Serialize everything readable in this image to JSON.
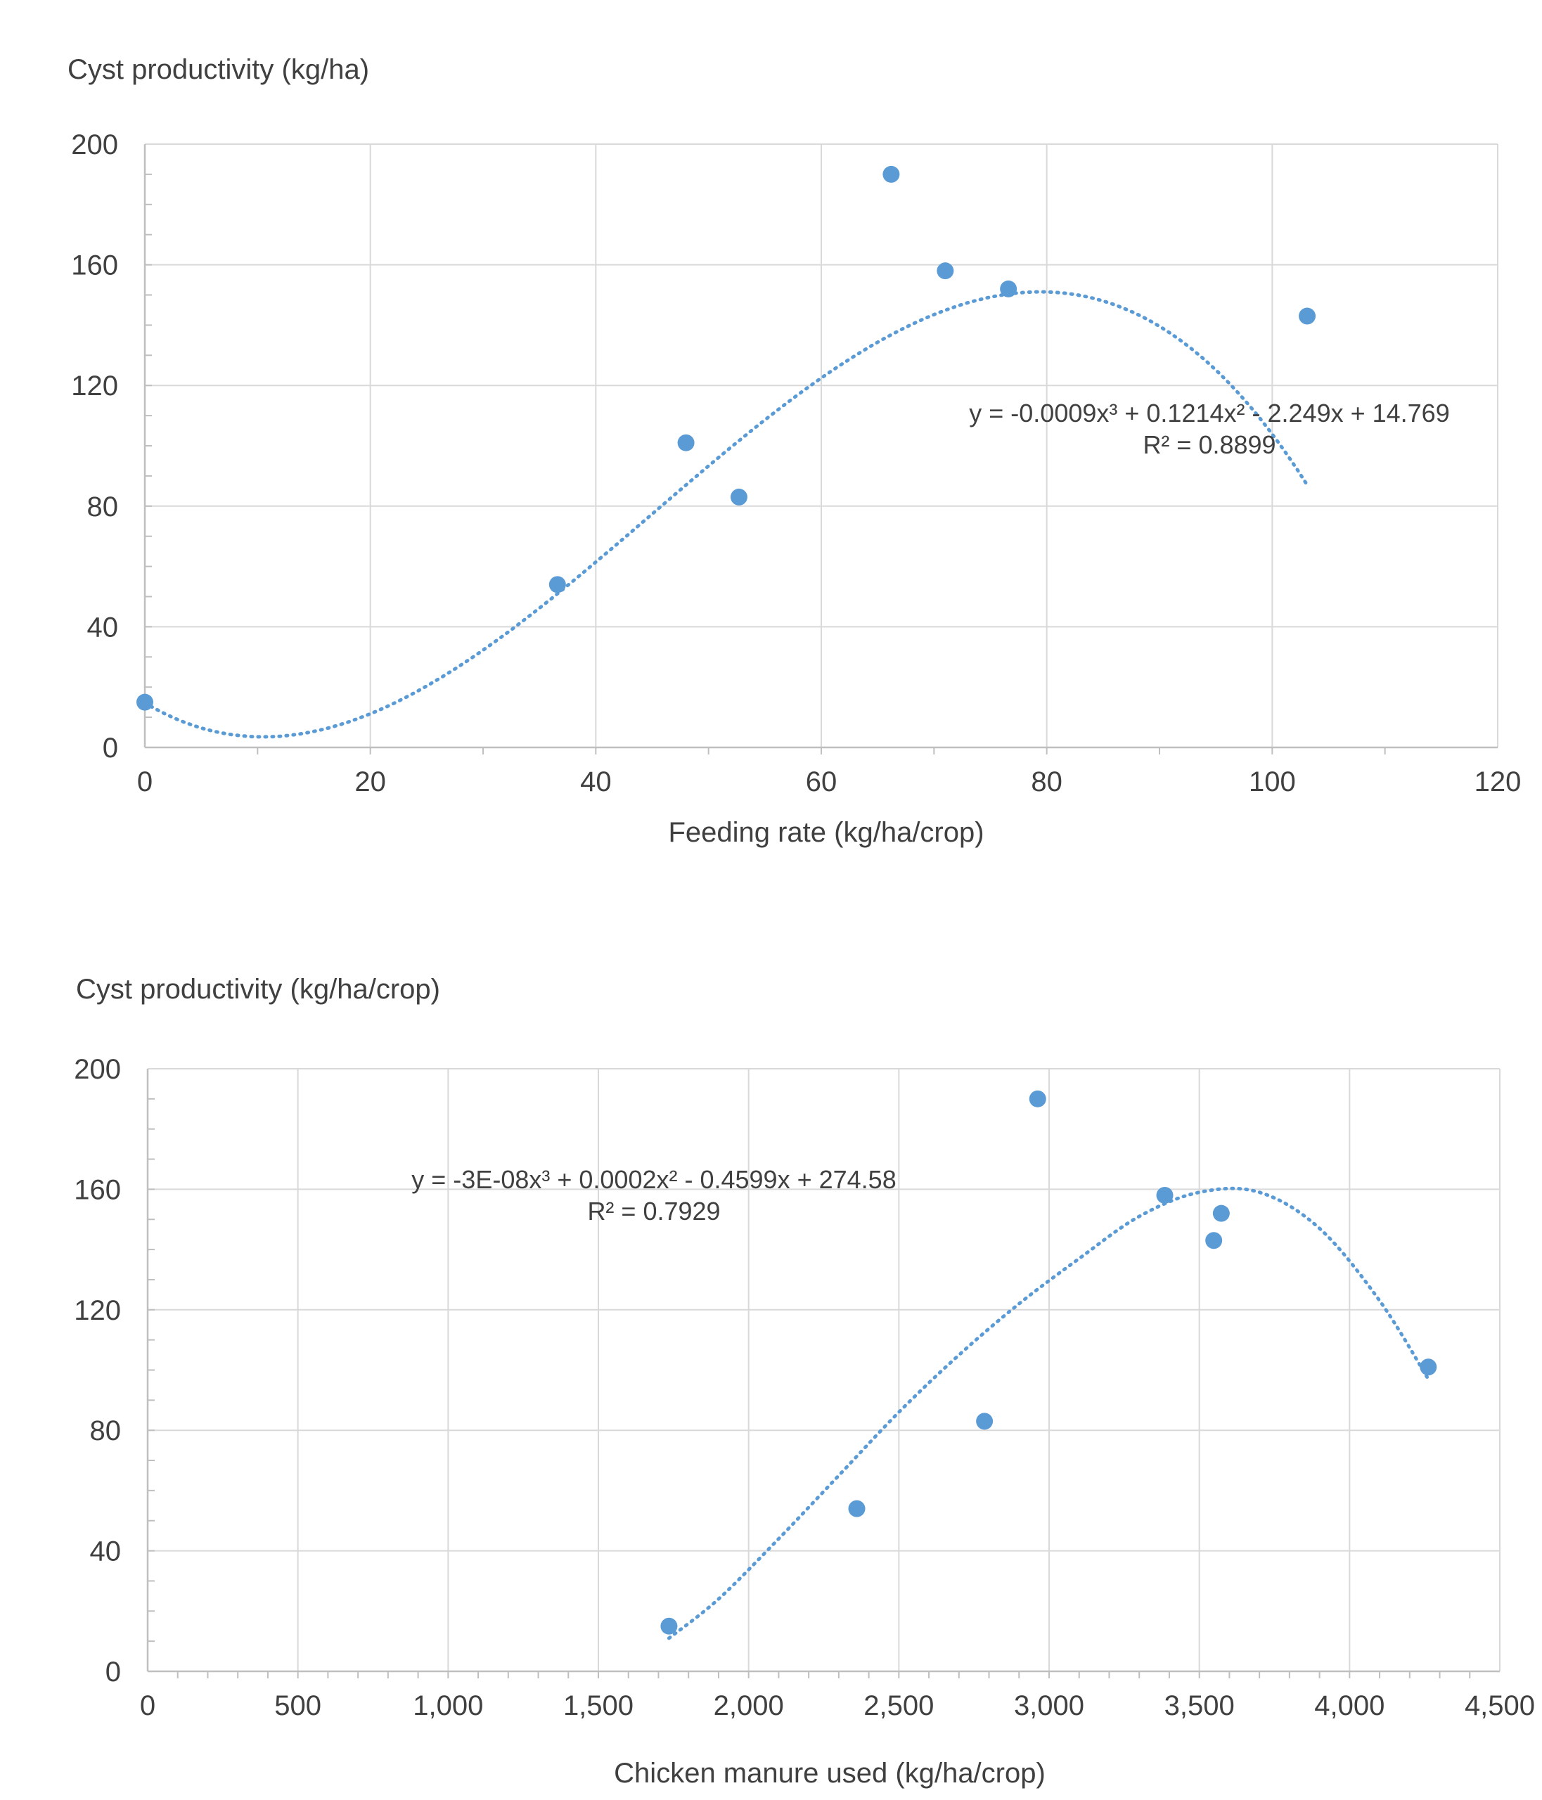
{
  "chart_data": [
    {
      "type": "scatter",
      "title": "",
      "ylabel": "Cyst productivity (kg/ha)",
      "xlabel": "Feeding rate (kg/ha/crop)",
      "xlim": [
        0,
        120
      ],
      "ylim": [
        0,
        200
      ],
      "xticks": [
        0,
        20,
        40,
        60,
        80,
        100,
        120
      ],
      "xtick_labels": [
        "0",
        "20",
        "40",
        "60",
        "80",
        "100",
        "120"
      ],
      "yticks": [
        0,
        40,
        80,
        120,
        160,
        200
      ],
      "ytick_labels": [
        "0",
        "40",
        "80",
        "120",
        "160",
        "200"
      ],
      "grid": true,
      "legend": "none",
      "series": [
        {
          "x": [
            0,
            36.6,
            48,
            52.7,
            66.2,
            71,
            76.6,
            103.1
          ],
          "y": [
            15,
            54,
            101,
            83,
            190,
            158,
            152,
            143
          ],
          "color": "#5b9bd5"
        }
      ],
      "trendline": {
        "kind": "polynomial-3",
        "coefficients": [
          -0.0009,
          0.1214,
          -2.249,
          14.769
        ],
        "x_range": [
          0,
          103.1
        ],
        "color": "#5b9bd5",
        "style": "dotted"
      },
      "annotations": [
        "y = -0.0009x³ + 0.1214x² - 2.249x + 14.769",
        "R² = 0.8899"
      ]
    },
    {
      "type": "scatter",
      "title": "",
      "ylabel": "Cyst productivity (kg/ha/crop)",
      "xlabel": "Chicken manure used (kg/ha/crop)",
      "xlim": [
        0,
        4500
      ],
      "ylim": [
        0,
        200
      ],
      "xticks": [
        0,
        500,
        1000,
        1500,
        2000,
        2500,
        3000,
        3500,
        4000,
        4500
      ],
      "xtick_labels": [
        "0",
        "500",
        "1,000",
        "1,500",
        "2,000",
        "2,500",
        "3,000",
        "3,500",
        "4,000",
        "4,500"
      ],
      "yticks": [
        0,
        40,
        80,
        120,
        160,
        200
      ],
      "ytick_labels": [
        "0",
        "40",
        "80",
        "120",
        "160",
        "200"
      ],
      "grid": true,
      "legend": "none",
      "series": [
        {
          "x": [
            1735,
            2360,
            2785,
            2962,
            3385,
            3548,
            3573,
            4262
          ],
          "y": [
            15,
            54,
            83,
            190,
            158,
            143,
            152,
            101
          ],
          "color": "#5b9bd5"
        }
      ],
      "trendline": {
        "kind": "polynomial-3",
        "curve": {
          "x": [
            1735,
            1900,
            2100,
            2300,
            2500,
            2700,
            2900,
            3100,
            3300,
            3500,
            3700,
            3900,
            4100,
            4262
          ],
          "y": [
            11,
            24,
            44,
            65,
            86,
            105,
            122,
            137,
            151,
            159,
            159,
            147,
            123,
            97
          ]
        },
        "color": "#5b9bd5",
        "style": "dotted"
      },
      "annotations": [
        "y = -3E-08x³ + 0.0002x² - 0.4599x + 274.58",
        "R² = 0.7929"
      ]
    }
  ]
}
